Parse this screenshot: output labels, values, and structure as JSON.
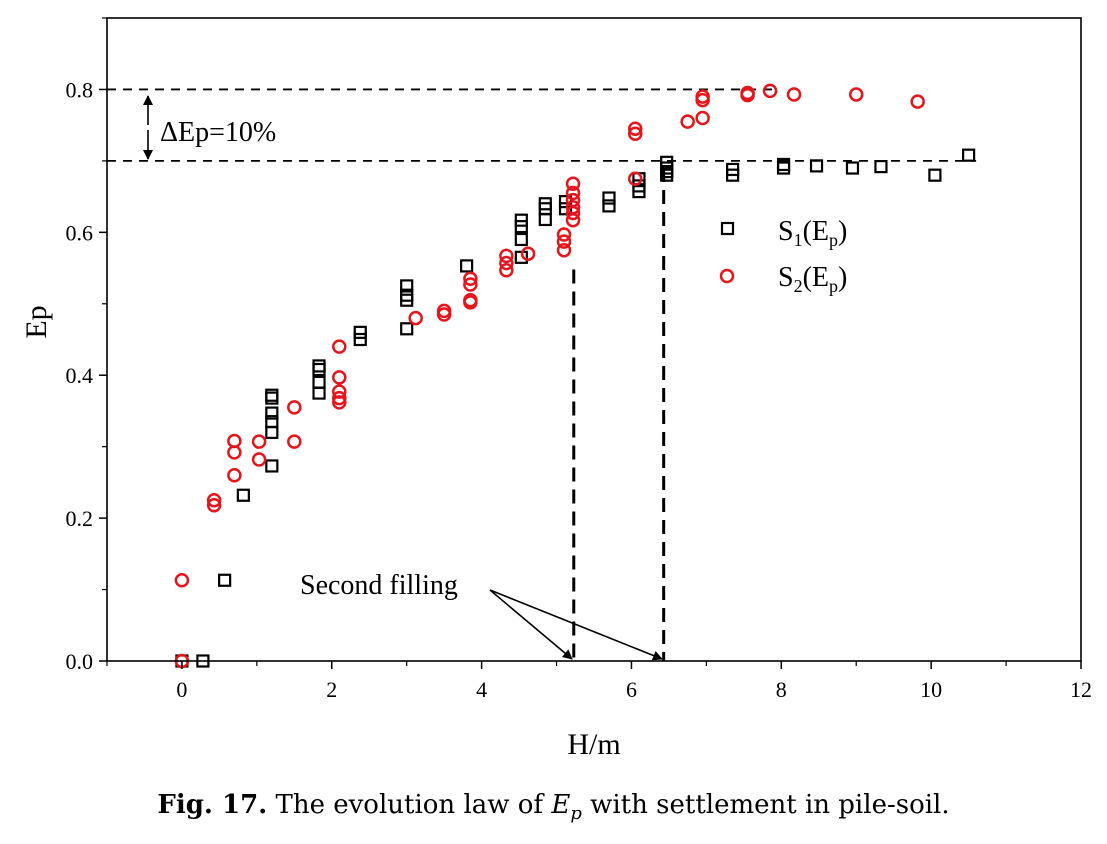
{
  "chart_data": {
    "type": "scatter",
    "xlabel": "H/m",
    "ylabel": "Ep",
    "xlim": [
      -1,
      12
    ],
    "ylim": [
      0,
      0.9
    ],
    "x_ticks": [
      0,
      2,
      4,
      6,
      8,
      10,
      12
    ],
    "y_ticks": [
      0.0,
      0.2,
      0.4,
      0.6,
      0.8
    ],
    "x_tick_labels": [
      "0",
      "2",
      "4",
      "6",
      "8",
      "10",
      "12"
    ],
    "y_tick_labels": [
      "0.0",
      "0.2",
      "0.4",
      "0.6",
      "0.8"
    ],
    "grid": false,
    "legend_position": "right-middle",
    "series": [
      {
        "name": "S1(Ep)",
        "legend_main": "S",
        "legend_sub1": "1",
        "legend_mid": "(E",
        "legend_sub2": "p",
        "legend_end": ")",
        "marker": "square",
        "color": "#000000",
        "points": [
          [
            0,
            0
          ],
          [
            0.28,
            0
          ],
          [
            0.57,
            0.113
          ],
          [
            0.82,
            0.232
          ],
          [
            1.2,
            0.273
          ],
          [
            1.2,
            0.32
          ],
          [
            1.2,
            0.335
          ],
          [
            1.2,
            0.347
          ],
          [
            1.2,
            0.368
          ],
          [
            1.2,
            0.372
          ],
          [
            1.83,
            0.375
          ],
          [
            1.83,
            0.39
          ],
          [
            1.83,
            0.408
          ],
          [
            1.83,
            0.413
          ],
          [
            2.38,
            0.45
          ],
          [
            2.38,
            0.46
          ],
          [
            3.0,
            0.465
          ],
          [
            3.0,
            0.505
          ],
          [
            3.0,
            0.512
          ],
          [
            3.0,
            0.525
          ],
          [
            3.8,
            0.553
          ],
          [
            4.53,
            0.565
          ],
          [
            4.53,
            0.59
          ],
          [
            4.53,
            0.608
          ],
          [
            4.53,
            0.617
          ],
          [
            4.85,
            0.618
          ],
          [
            4.85,
            0.633
          ],
          [
            4.85,
            0.64
          ],
          [
            5.12,
            0.633
          ],
          [
            5.12,
            0.643
          ],
          [
            5.7,
            0.637
          ],
          [
            5.7,
            0.648
          ],
          [
            6.1,
            0.657
          ],
          [
            6.1,
            0.665
          ],
          [
            6.1,
            0.675
          ],
          [
            6.47,
            0.68
          ],
          [
            6.47,
            0.685
          ],
          [
            6.47,
            0.69
          ],
          [
            6.47,
            0.698
          ],
          [
            7.35,
            0.68
          ],
          [
            7.35,
            0.688
          ],
          [
            8.03,
            0.69
          ],
          [
            8.03,
            0.695
          ],
          [
            8.47,
            0.693
          ],
          [
            8.95,
            0.69
          ],
          [
            9.33,
            0.692
          ],
          [
            10.05,
            0.68
          ],
          [
            10.5,
            0.708
          ]
        ]
      },
      {
        "name": "S2(Ep)",
        "legend_main": "S",
        "legend_sub1": "2",
        "legend_mid": "(E",
        "legend_sub2": "p",
        "legend_end": ")",
        "marker": "circle",
        "color": "#e8141b",
        "points": [
          [
            0,
            0
          ],
          [
            0,
            0.113
          ],
          [
            0.43,
            0.218
          ],
          [
            0.43,
            0.225
          ],
          [
            0.7,
            0.26
          ],
          [
            0.7,
            0.292
          ],
          [
            0.7,
            0.308
          ],
          [
            1.03,
            0.282
          ],
          [
            1.03,
            0.307
          ],
          [
            1.5,
            0.307
          ],
          [
            1.5,
            0.355
          ],
          [
            2.1,
            0.362
          ],
          [
            2.1,
            0.368
          ],
          [
            2.1,
            0.377
          ],
          [
            2.1,
            0.397
          ],
          [
            2.1,
            0.44
          ],
          [
            3.12,
            0.48
          ],
          [
            3.5,
            0.485
          ],
          [
            3.5,
            0.49
          ],
          [
            3.85,
            0.502
          ],
          [
            3.85,
            0.505
          ],
          [
            3.85,
            0.527
          ],
          [
            3.85,
            0.535
          ],
          [
            4.33,
            0.547
          ],
          [
            4.33,
            0.557
          ],
          [
            4.33,
            0.567
          ],
          [
            4.62,
            0.57
          ],
          [
            5.1,
            0.575
          ],
          [
            5.1,
            0.587
          ],
          [
            5.1,
            0.597
          ],
          [
            5.22,
            0.617
          ],
          [
            5.22,
            0.627
          ],
          [
            5.22,
            0.635
          ],
          [
            5.22,
            0.645
          ],
          [
            5.22,
            0.655
          ],
          [
            5.22,
            0.668
          ],
          [
            6.05,
            0.675
          ],
          [
            6.05,
            0.738
          ],
          [
            6.05,
            0.745
          ],
          [
            6.75,
            0.755
          ],
          [
            6.95,
            0.76
          ],
          [
            6.95,
            0.785
          ],
          [
            6.95,
            0.79
          ],
          [
            7.55,
            0.792
          ],
          [
            7.55,
            0.795
          ],
          [
            7.85,
            0.798
          ],
          [
            8.17,
            0.793
          ],
          [
            9.0,
            0.793
          ],
          [
            9.82,
            0.783
          ]
        ]
      }
    ],
    "annotations": {
      "delta_text": "ΔEp=10%",
      "second_filling_text": "Second filling",
      "upper_ref_y": 0.8,
      "lower_ref_y": 0.7,
      "vlines_x": [
        5.23,
        6.43
      ]
    }
  },
  "caption": {
    "label": "Fig. 17.",
    "text_before": " The evolution law of ",
    "italic_main": "E",
    "italic_sub": "p",
    "text_after": " with settlement in pile-soil."
  }
}
